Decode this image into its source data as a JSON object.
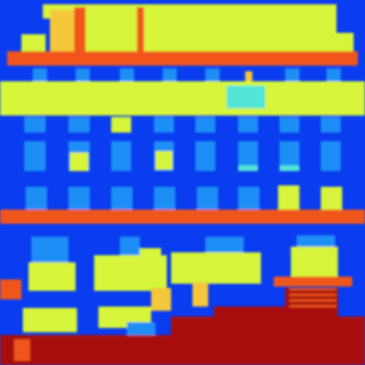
{
  "image": {
    "description_visible_text": "",
    "palette": {
      "sky_blue": "#0a3cf0",
      "window_cyan": "#1e8ef5",
      "band_yellow": "#d6f53a",
      "stripe_orange": "#f0561e",
      "ground_red": "#a8100e",
      "accent_cyan": "#52e6d6",
      "accent_amber": "#f5c83a"
    }
  }
}
